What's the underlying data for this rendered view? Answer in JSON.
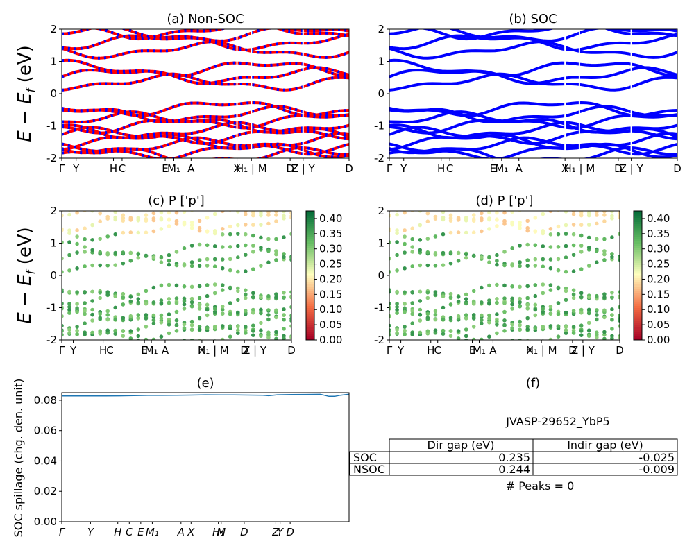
{
  "figure": {
    "material_id": "JVASP-29652_YbP5",
    "peaks_text": "# Peaks = 0"
  },
  "band_ylabel": "E − E",
  "band_ylabel_sub": "f",
  "band_ylabel_unit": " (eV)",
  "chart_data": [
    {
      "id": "a",
      "type": "line",
      "title": "(a) Non-SOC",
      "ylim": [
        -2,
        2
      ],
      "yticks": [
        -2,
        -1,
        0,
        1,
        2
      ],
      "xticks": [
        "Γ",
        "Y",
        "H",
        "C",
        "E",
        "M₁",
        "A",
        "X",
        "H₁ | M",
        "D",
        "Z | Y",
        "D"
      ],
      "series_colors": [
        "#ff0000",
        "#0000ff"
      ],
      "series_names": [
        "spin-up (red)",
        "spin-down (blue dashed)"
      ]
    },
    {
      "id": "b",
      "type": "line",
      "title": "(b) SOC",
      "ylim": [
        -2,
        2
      ],
      "yticks": [
        -2,
        -1,
        0,
        1,
        2
      ],
      "xticks": [
        "Γ",
        "Y",
        "H",
        "C",
        "E",
        "M₁",
        "A",
        "X",
        "H₁ | M",
        "D",
        "Z | Y",
        "D"
      ],
      "series_colors": [
        "#0000ff"
      ]
    },
    {
      "id": "c",
      "type": "scatter",
      "title": "(c)  P ['p']",
      "ylim": [
        -2,
        2
      ],
      "yticks": [
        -2,
        -1,
        0,
        1,
        2
      ],
      "xticks": [
        "Γ",
        "Y",
        "H",
        "C",
        "E",
        "M₁",
        "A",
        "X",
        "H₁ | M",
        "D",
        "Z | Y",
        "D"
      ],
      "colorbar": {
        "min": 0.0,
        "max": 0.425,
        "ticks": [
          "0.00",
          "0.05",
          "0.10",
          "0.15",
          "0.20",
          "0.25",
          "0.30",
          "0.35",
          "0.40"
        ],
        "cmap": "RdYlGn"
      }
    },
    {
      "id": "d",
      "type": "scatter",
      "title": "(d) P ['p']",
      "ylim": [
        -2,
        2
      ],
      "yticks": [
        -2,
        -1,
        0,
        1,
        2
      ],
      "xticks": [
        "Γ",
        "Y",
        "H",
        "C",
        "E",
        "M₁",
        "A",
        "X",
        "H₁ | M",
        "D",
        "Z | Y",
        "D"
      ],
      "colorbar": {
        "min": 0.0,
        "max": 0.425,
        "ticks": [
          "0.00",
          "0.05",
          "0.10",
          "0.15",
          "0.20",
          "0.25",
          "0.30",
          "0.35",
          "0.40"
        ],
        "cmap": "RdYlGn"
      }
    },
    {
      "id": "e",
      "type": "line",
      "title": "(e)",
      "ylabel": "SOC spillage (chg. den. unit)",
      "ylim": [
        0,
        0.085
      ],
      "yticks": [
        "0.00",
        "0.02",
        "0.04",
        "0.06",
        "0.08"
      ],
      "xticks": [
        "Γ",
        "Y",
        "H",
        "C",
        "E",
        "M₁",
        "A",
        "X",
        "H₁",
        "M",
        "D",
        "Z",
        "Y",
        "D"
      ],
      "series_color": "#1f77b4",
      "x": [
        0,
        0.05,
        0.1,
        0.15,
        0.2,
        0.25,
        0.3,
        0.35,
        0.4,
        0.45,
        0.5,
        0.55,
        0.6,
        0.65,
        0.7,
        0.72,
        0.75,
        0.8,
        0.85,
        0.9,
        0.93,
        0.95,
        0.97,
        1.0
      ],
      "y": [
        0.0828,
        0.0828,
        0.0828,
        0.0828,
        0.0829,
        0.0831,
        0.0832,
        0.0832,
        0.0833,
        0.0834,
        0.0836,
        0.0835,
        0.0835,
        0.0834,
        0.0833,
        0.083,
        0.0836,
        0.0837,
        0.0838,
        0.0839,
        0.0826,
        0.0826,
        0.0833,
        0.084
      ]
    },
    {
      "id": "f",
      "type": "table",
      "title": "(f)",
      "columns": [
        "Dir gap (eV)",
        "Indir gap (eV)"
      ],
      "rows": [
        {
          "label": "SOC",
          "values": [
            "0.235",
            "-0.025"
          ]
        },
        {
          "label": "NSOC",
          "values": [
            "0.244",
            "-0.009"
          ]
        }
      ]
    }
  ]
}
